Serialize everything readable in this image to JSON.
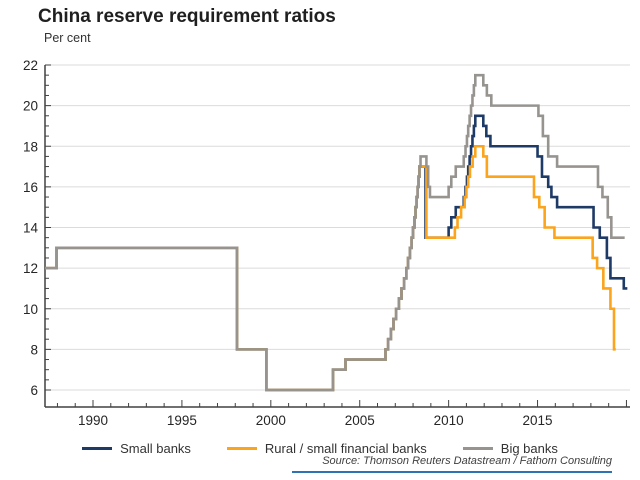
{
  "title": "China reserve requirement ratios",
  "subtitle": "Per cent",
  "source": "Source: Thomson Reuters Datastream / Fathom Consulting",
  "colors": {
    "small_banks": "#1e3a66",
    "rural_small_financial_banks": "#fba41c",
    "big_banks": "#979490",
    "gridline": "#dbdbdb",
    "axis": "#404040",
    "tick_label": "#262626",
    "bottom_rule": "#2e74b5"
  },
  "chart_data": {
    "type": "line",
    "step": "after",
    "title": "China reserve requirement ratios",
    "ylabel": "Per cent",
    "xlabel": "",
    "grid": "horizontal",
    "legend_position": "bottom",
    "xlim": [
      1987.3,
      2020.2
    ],
    "ylim": [
      6,
      22
    ],
    "x_ticks_major": [
      1990,
      1995,
      2000,
      2005,
      2010,
      2015
    ],
    "y_ticks_major": [
      6,
      8,
      10,
      12,
      14,
      16,
      18,
      20,
      22
    ],
    "series": [
      {
        "name": "Small banks",
        "color": "#1e3a66",
        "points": [
          [
            1987.3,
            12
          ],
          [
            1987.95,
            13
          ],
          [
            1998.1,
            8
          ],
          [
            1999.75,
            6
          ],
          [
            2003.5,
            7
          ],
          [
            2004.2,
            7.5
          ],
          [
            2006.45,
            8
          ],
          [
            2006.6,
            8.5
          ],
          [
            2006.75,
            9
          ],
          [
            2006.9,
            9.5
          ],
          [
            2007.05,
            10
          ],
          [
            2007.2,
            10.5
          ],
          [
            2007.35,
            11
          ],
          [
            2007.5,
            11.5
          ],
          [
            2007.62,
            12
          ],
          [
            2007.72,
            12.5
          ],
          [
            2007.82,
            13
          ],
          [
            2007.92,
            13.5
          ],
          [
            2008.0,
            14
          ],
          [
            2008.08,
            14.5
          ],
          [
            2008.14,
            15
          ],
          [
            2008.2,
            15.5
          ],
          [
            2008.26,
            16
          ],
          [
            2008.31,
            16.5
          ],
          [
            2008.36,
            17
          ],
          [
            2008.7,
            13.5
          ],
          [
            2010.0,
            14
          ],
          [
            2010.15,
            14.5
          ],
          [
            2010.4,
            15
          ],
          [
            2010.85,
            15.5
          ],
          [
            2010.95,
            16
          ],
          [
            2011.03,
            16.5
          ],
          [
            2011.1,
            17
          ],
          [
            2011.18,
            17.5
          ],
          [
            2011.26,
            18
          ],
          [
            2011.34,
            18.5
          ],
          [
            2011.42,
            19
          ],
          [
            2011.5,
            19.5
          ],
          [
            2011.95,
            19
          ],
          [
            2012.12,
            18.5
          ],
          [
            2012.35,
            18
          ],
          [
            2015.0,
            17.5
          ],
          [
            2015.25,
            16.5
          ],
          [
            2015.6,
            16
          ],
          [
            2015.78,
            15.5
          ],
          [
            2016.1,
            15
          ],
          [
            2018.15,
            14
          ],
          [
            2018.5,
            13.5
          ],
          [
            2018.9,
            12.5
          ],
          [
            2019.1,
            11.5
          ],
          [
            2019.85,
            11
          ],
          [
            2020.05,
            11
          ]
        ]
      },
      {
        "name": "Rural / small financial banks",
        "color": "#fba41c",
        "points": [
          [
            1987.3,
            12
          ],
          [
            1987.95,
            13
          ],
          [
            1998.1,
            8
          ],
          [
            1999.75,
            6
          ],
          [
            2003.5,
            7
          ],
          [
            2004.2,
            7.5
          ],
          [
            2006.45,
            8
          ],
          [
            2006.6,
            8.5
          ],
          [
            2006.75,
            9
          ],
          [
            2006.9,
            9.5
          ],
          [
            2007.05,
            10
          ],
          [
            2007.2,
            10.5
          ],
          [
            2007.35,
            11
          ],
          [
            2007.5,
            11.5
          ],
          [
            2007.62,
            12
          ],
          [
            2007.72,
            12.5
          ],
          [
            2007.82,
            13
          ],
          [
            2007.92,
            13.5
          ],
          [
            2008.0,
            14
          ],
          [
            2008.08,
            14.5
          ],
          [
            2008.14,
            15
          ],
          [
            2008.2,
            15.5
          ],
          [
            2008.26,
            16
          ],
          [
            2008.31,
            16.5
          ],
          [
            2008.36,
            17
          ],
          [
            2008.75,
            13.5
          ],
          [
            2010.35,
            14
          ],
          [
            2010.5,
            14.5
          ],
          [
            2010.7,
            15
          ],
          [
            2010.9,
            15.5
          ],
          [
            2011.0,
            16
          ],
          [
            2011.1,
            16.5
          ],
          [
            2011.2,
            17
          ],
          [
            2011.35,
            17.5
          ],
          [
            2011.5,
            18
          ],
          [
            2011.95,
            17.5
          ],
          [
            2012.15,
            16.5
          ],
          [
            2014.8,
            15.5
          ],
          [
            2015.1,
            15
          ],
          [
            2015.4,
            14
          ],
          [
            2015.95,
            13.5
          ],
          [
            2018.1,
            12.5
          ],
          [
            2018.35,
            12
          ],
          [
            2018.7,
            11
          ],
          [
            2019.1,
            10
          ],
          [
            2019.3,
            8
          ],
          [
            2019.4,
            8
          ]
        ]
      },
      {
        "name": "Big banks",
        "color": "#979490",
        "points": [
          [
            1987.3,
            12
          ],
          [
            1987.95,
            13
          ],
          [
            1998.1,
            8
          ],
          [
            1999.75,
            6
          ],
          [
            2003.5,
            7
          ],
          [
            2004.2,
            7.5
          ],
          [
            2006.45,
            8
          ],
          [
            2006.6,
            8.5
          ],
          [
            2006.75,
            9
          ],
          [
            2006.9,
            9.5
          ],
          [
            2007.05,
            10
          ],
          [
            2007.2,
            10.5
          ],
          [
            2007.35,
            11
          ],
          [
            2007.5,
            11.5
          ],
          [
            2007.62,
            12
          ],
          [
            2007.72,
            12.5
          ],
          [
            2007.82,
            13
          ],
          [
            2007.92,
            13.5
          ],
          [
            2008.0,
            14
          ],
          [
            2008.08,
            14.5
          ],
          [
            2008.14,
            15
          ],
          [
            2008.2,
            15.5
          ],
          [
            2008.26,
            16
          ],
          [
            2008.31,
            16.5
          ],
          [
            2008.36,
            17
          ],
          [
            2008.42,
            17.5
          ],
          [
            2008.75,
            17
          ],
          [
            2008.85,
            16
          ],
          [
            2008.95,
            15.5
          ],
          [
            2010.0,
            16
          ],
          [
            2010.15,
            16.5
          ],
          [
            2010.4,
            17
          ],
          [
            2010.85,
            17.5
          ],
          [
            2010.95,
            18
          ],
          [
            2011.03,
            18.5
          ],
          [
            2011.1,
            19
          ],
          [
            2011.18,
            19.5
          ],
          [
            2011.26,
            20
          ],
          [
            2011.34,
            20.5
          ],
          [
            2011.42,
            21
          ],
          [
            2011.5,
            21.5
          ],
          [
            2011.95,
            21
          ],
          [
            2012.15,
            20.5
          ],
          [
            2012.4,
            20
          ],
          [
            2015.05,
            19.5
          ],
          [
            2015.3,
            18.5
          ],
          [
            2015.6,
            17.5
          ],
          [
            2016.1,
            17
          ],
          [
            2018.4,
            16
          ],
          [
            2018.65,
            15.5
          ],
          [
            2018.95,
            14.5
          ],
          [
            2019.15,
            13.5
          ],
          [
            2019.9,
            13.5
          ]
        ]
      }
    ]
  }
}
